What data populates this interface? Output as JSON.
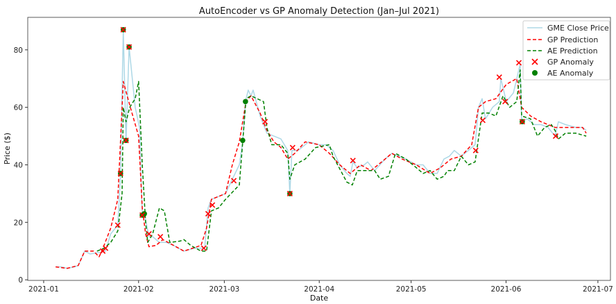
{
  "chart_data": {
    "type": "line",
    "title": "AutoEncoder vs GP Anomaly Detection (Jan–Jul 2021)",
    "xlabel": "Date",
    "ylabel": "Price ($)",
    "x_units": "days since 2021-01-01",
    "xlim": [
      -5.2,
      185.1
    ],
    "ylim": [
      -0.2,
      91.3
    ],
    "xticks": [
      {
        "v": 0,
        "label": "2021-01"
      },
      {
        "v": 31,
        "label": "2021-02"
      },
      {
        "v": 59,
        "label": "2021-03"
      },
      {
        "v": 90,
        "label": "2021-04"
      },
      {
        "v": 120,
        "label": "2021-05"
      },
      {
        "v": 151,
        "label": "2021-06"
      },
      {
        "v": 181,
        "label": "2021-07"
      }
    ],
    "yticks": [
      {
        "v": 0,
        "label": "0"
      },
      {
        "v": 20,
        "label": "20"
      },
      {
        "v": 40,
        "label": "40"
      },
      {
        "v": 60,
        "label": "60"
      },
      {
        "v": 80,
        "label": "80"
      }
    ],
    "legend_position": "top-right",
    "colors": {
      "price": "#add8e6",
      "gp": "#ff0000",
      "ae": "#008000"
    },
    "series": [
      {
        "name": "GME Close Price",
        "style": "solid",
        "points": [
          [
            3.9,
            4.5
          ],
          [
            5.7,
            4.5
          ],
          [
            7.7,
            4
          ],
          [
            10,
            4.5
          ],
          [
            11.3,
            5
          ],
          [
            13.4,
            10
          ],
          [
            15.2,
            9
          ],
          [
            18.1,
            9.5
          ],
          [
            20.2,
            10
          ],
          [
            21.9,
            16
          ],
          [
            24.2,
            19
          ],
          [
            25.1,
            36
          ],
          [
            26,
            87
          ],
          [
            26.9,
            48
          ],
          [
            27.9,
            81
          ],
          [
            29.9,
            60
          ],
          [
            31.3,
            53
          ],
          [
            32.2,
            22.5
          ],
          [
            32.9,
            23
          ],
          [
            34.4,
            15
          ],
          [
            35.6,
            15
          ],
          [
            37.8,
            13
          ],
          [
            40.1,
            13
          ],
          [
            42.4,
            12
          ],
          [
            45.8,
            10
          ],
          [
            49.2,
            11
          ],
          [
            52.6,
            11
          ],
          [
            53.7,
            25
          ],
          [
            54.8,
            28
          ],
          [
            57.1,
            29
          ],
          [
            59.4,
            30
          ],
          [
            61.6,
            35
          ],
          [
            63.9,
            40
          ],
          [
            65,
            48
          ],
          [
            65.9,
            62
          ],
          [
            66.8,
            66
          ],
          [
            67.7,
            64
          ],
          [
            68.4,
            66
          ],
          [
            70.7,
            57
          ],
          [
            72.9,
            51
          ],
          [
            75.2,
            50
          ],
          [
            77.5,
            49
          ],
          [
            79.7,
            45
          ],
          [
            80.4,
            30
          ],
          [
            81.1,
            45
          ],
          [
            83.1,
            45
          ],
          [
            86.5,
            48
          ],
          [
            89.9,
            47
          ],
          [
            92.2,
            47
          ],
          [
            94.5,
            45
          ],
          [
            96.7,
            40
          ],
          [
            99,
            37
          ],
          [
            100.1,
            36
          ],
          [
            101,
            41
          ],
          [
            102.4,
            39
          ],
          [
            104.7,
            40
          ],
          [
            105.8,
            41
          ],
          [
            108.1,
            38
          ],
          [
            111.5,
            42
          ],
          [
            113.7,
            44
          ],
          [
            116,
            43
          ],
          [
            118.3,
            42
          ],
          [
            121.7,
            40
          ],
          [
            123.9,
            40
          ],
          [
            126.2,
            37
          ],
          [
            128.5,
            37
          ],
          [
            130.7,
            42
          ],
          [
            132.5,
            43
          ],
          [
            134.1,
            45
          ],
          [
            136.4,
            43
          ],
          [
            138.7,
            45
          ],
          [
            140.9,
            47
          ],
          [
            142,
            60
          ],
          [
            143.2,
            63
          ],
          [
            144.3,
            56
          ],
          [
            146.6,
            60
          ],
          [
            148.8,
            62
          ],
          [
            149.3,
            70
          ],
          [
            151.1,
            62
          ],
          [
            153.4,
            65
          ],
          [
            155.6,
            75
          ],
          [
            156.1,
            55
          ],
          [
            157.9,
            56
          ],
          [
            160.2,
            54
          ],
          [
            162.4,
            54
          ],
          [
            164.7,
            53
          ],
          [
            167,
            50
          ],
          [
            168.1,
            55
          ],
          [
            170.4,
            54
          ],
          [
            173.8,
            53
          ],
          [
            176,
            53
          ],
          [
            177.2,
            52
          ]
        ]
      },
      {
        "name": "GP Prediction",
        "style": "dashed",
        "points": [
          [
            3.9,
            4.5
          ],
          [
            7.7,
            4
          ],
          [
            11.3,
            5
          ],
          [
            13.4,
            10
          ],
          [
            16.3,
            10
          ],
          [
            18.1,
            8
          ],
          [
            19,
            10
          ],
          [
            21.9,
            18
          ],
          [
            24.2,
            28
          ],
          [
            25.6,
            60
          ],
          [
            26,
            69
          ],
          [
            28.3,
            60
          ],
          [
            31,
            50
          ],
          [
            32.2,
            25
          ],
          [
            33.3,
            16
          ],
          [
            34.4,
            11.5
          ],
          [
            36.7,
            12
          ],
          [
            38.9,
            14
          ],
          [
            42.4,
            12
          ],
          [
            45.8,
            10
          ],
          [
            51.4,
            12
          ],
          [
            53.2,
            18
          ],
          [
            54.8,
            28
          ],
          [
            57.1,
            29
          ],
          [
            59.4,
            30
          ],
          [
            61.6,
            40
          ],
          [
            63.9,
            48
          ],
          [
            66.1,
            62
          ],
          [
            67.7,
            64
          ],
          [
            70.7,
            58
          ],
          [
            72.9,
            52
          ],
          [
            75.2,
            48
          ],
          [
            77.5,
            46
          ],
          [
            79.7,
            42
          ],
          [
            82,
            44
          ],
          [
            85.4,
            48
          ],
          [
            89.9,
            47
          ],
          [
            93.3,
            44
          ],
          [
            96.7,
            40
          ],
          [
            100.1,
            37
          ],
          [
            103.5,
            40
          ],
          [
            106.9,
            38
          ],
          [
            111.5,
            42
          ],
          [
            113.7,
            44
          ],
          [
            117.1,
            42
          ],
          [
            121.7,
            40
          ],
          [
            126.2,
            37
          ],
          [
            129.6,
            39
          ],
          [
            133,
            42
          ],
          [
            136.4,
            43
          ],
          [
            139.8,
            47
          ],
          [
            142,
            60
          ],
          [
            144.3,
            62
          ],
          [
            147.7,
            63
          ],
          [
            151.1,
            68
          ],
          [
            154.5,
            70
          ],
          [
            156.1,
            60
          ],
          [
            159,
            57
          ],
          [
            162.4,
            55
          ],
          [
            167,
            53
          ],
          [
            171.5,
            53
          ],
          [
            176,
            53
          ],
          [
            177.2,
            51
          ]
        ]
      },
      {
        "name": "AE Prediction",
        "style": "dashed",
        "points": [
          [
            17.4,
            10
          ],
          [
            19.7,
            11
          ],
          [
            21.9,
            13
          ],
          [
            24.2,
            17
          ],
          [
            25.6,
            30
          ],
          [
            26,
            60
          ],
          [
            26.9,
            55
          ],
          [
            28.1,
            60
          ],
          [
            29.9,
            63
          ],
          [
            31,
            69
          ],
          [
            32.2,
            40
          ],
          [
            33.3,
            20
          ],
          [
            34,
            13
          ],
          [
            35.6,
            16
          ],
          [
            37.8,
            25
          ],
          [
            39.4,
            24
          ],
          [
            41.2,
            13
          ],
          [
            44.6,
            13.5
          ],
          [
            45.8,
            14
          ],
          [
            48,
            12
          ],
          [
            51.4,
            10
          ],
          [
            53.2,
            10
          ],
          [
            54.8,
            24
          ],
          [
            57.1,
            25
          ],
          [
            59.4,
            28
          ],
          [
            63.9,
            33
          ],
          [
            65,
            48
          ],
          [
            66.1,
            63
          ],
          [
            67.7,
            64
          ],
          [
            71.8,
            62
          ],
          [
            72.9,
            53
          ],
          [
            74.5,
            47
          ],
          [
            77.5,
            47
          ],
          [
            79.7,
            44
          ],
          [
            80.4,
            35
          ],
          [
            82,
            40
          ],
          [
            85.4,
            42
          ],
          [
            88.8,
            46
          ],
          [
            93.3,
            47
          ],
          [
            94.5,
            43
          ],
          [
            99,
            34
          ],
          [
            100.8,
            33
          ],
          [
            102.4,
            38
          ],
          [
            105.8,
            38
          ],
          [
            108.1,
            38
          ],
          [
            109.9,
            35
          ],
          [
            112.6,
            36
          ],
          [
            114.9,
            44
          ],
          [
            118.3,
            42
          ],
          [
            121.7,
            39
          ],
          [
            123.9,
            37
          ],
          [
            126.2,
            38
          ],
          [
            128.5,
            35
          ],
          [
            130.7,
            36
          ],
          [
            131.9,
            38
          ],
          [
            134.1,
            38
          ],
          [
            136.4,
            43
          ],
          [
            138.7,
            40
          ],
          [
            140.9,
            41
          ],
          [
            143.2,
            58
          ],
          [
            145.4,
            58
          ],
          [
            147.7,
            57
          ],
          [
            150,
            64
          ],
          [
            152.2,
            60
          ],
          [
            154.5,
            62
          ],
          [
            155.6,
            73
          ],
          [
            156.1,
            57
          ],
          [
            159,
            56
          ],
          [
            161.3,
            50
          ],
          [
            163.6,
            53
          ],
          [
            165.8,
            54
          ],
          [
            167,
            52
          ],
          [
            168.1,
            49
          ],
          [
            170.4,
            51
          ],
          [
            173.8,
            51
          ],
          [
            177.2,
            50
          ]
        ]
      }
    ],
    "markers": [
      {
        "name": "GP Anomaly",
        "shape": "x",
        "points": [
          [
            19.3,
            10
          ],
          [
            20.2,
            11
          ],
          [
            24.2,
            19
          ],
          [
            25.1,
            37
          ],
          [
            26,
            87
          ],
          [
            26.9,
            48.5
          ],
          [
            27.9,
            81
          ],
          [
            32.2,
            22.5
          ],
          [
            34.4,
            16
          ],
          [
            38.1,
            15
          ],
          [
            52.3,
            11
          ],
          [
            53.7,
            23
          ],
          [
            55.1,
            26
          ],
          [
            62.1,
            34.5
          ],
          [
            72.3,
            55
          ],
          [
            80.4,
            30
          ],
          [
            81.3,
            46
          ],
          [
            101,
            41.5
          ],
          [
            141.1,
            45
          ],
          [
            143.4,
            55.5
          ],
          [
            148.8,
            70.5
          ],
          [
            150.7,
            62
          ],
          [
            155.2,
            75.5
          ],
          [
            156.3,
            55
          ],
          [
            167.2,
            50
          ]
        ]
      },
      {
        "name": "AE Anomaly",
        "shape": "circle",
        "points": [
          [
            25.1,
            37
          ],
          [
            26,
            87
          ],
          [
            26.9,
            48.5
          ],
          [
            27.9,
            81
          ],
          [
            32.2,
            22.5
          ],
          [
            32.9,
            23
          ],
          [
            65,
            48.5
          ],
          [
            65.9,
            62
          ],
          [
            80.4,
            30
          ],
          [
            156.3,
            55
          ]
        ]
      }
    ]
  }
}
